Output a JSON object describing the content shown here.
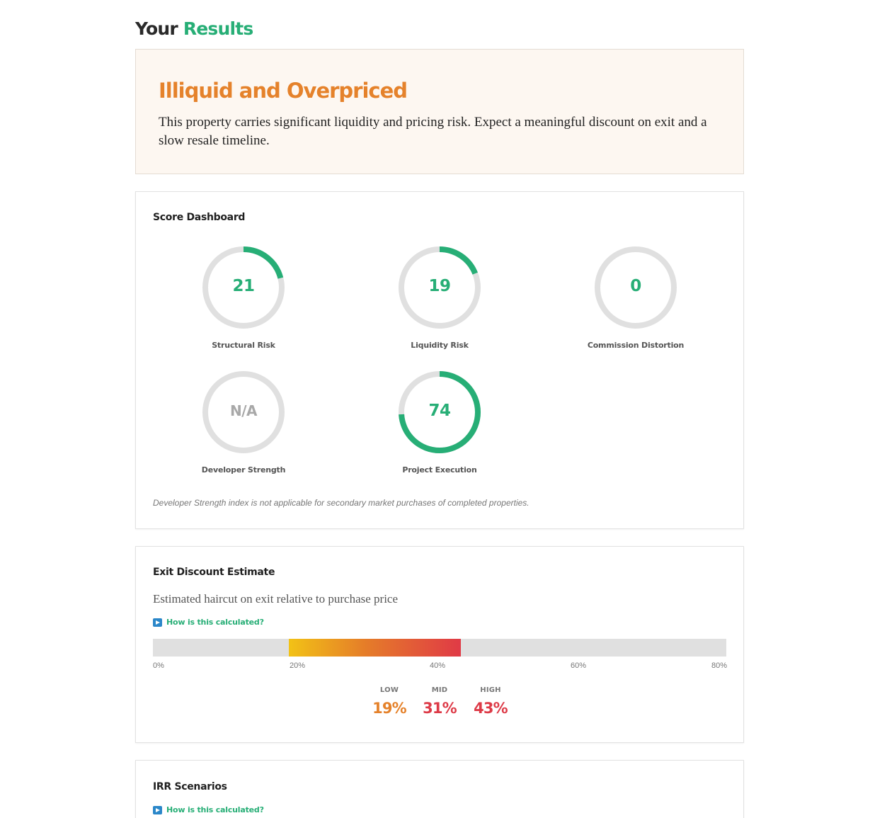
{
  "header": {
    "title_prefix": "Your",
    "title_accent": "Results"
  },
  "verdict": {
    "title": "Illiquid and Overpriced",
    "description": "This property carries significant liquidity and pricing risk. Expect a meaningful discount on exit and a slow resale timeline."
  },
  "score_dashboard": {
    "title": "Score Dashboard",
    "gauges": [
      {
        "label": "Structural Risk",
        "value": "21",
        "fraction": 0.21
      },
      {
        "label": "Liquidity Risk",
        "value": "19",
        "fraction": 0.19
      },
      {
        "label": "Commission Distortion",
        "value": "0",
        "fraction": 0
      },
      {
        "label": "Developer Strength",
        "value": "N/A",
        "fraction": 0
      },
      {
        "label": "Project Execution",
        "value": "74",
        "fraction": 0.74
      }
    ],
    "note": "Developer Strength index is not applicable for secondary market purchases of completed properties."
  },
  "exit_discount": {
    "title": "Exit Discount Estimate",
    "subtitle": "Estimated haircut on exit relative to purchase price",
    "how_link": "How is this calculated?",
    "range_low_pct": 19,
    "range_high_pct": 43,
    "scale_max_pct": 80,
    "ticks": [
      "0%",
      "20%",
      "40%",
      "60%",
      "80%"
    ],
    "stats": [
      {
        "label": "LOW",
        "value": "19%",
        "color": "#e5822b"
      },
      {
        "label": "MID",
        "value": "31%",
        "color": "#dd3a47"
      },
      {
        "label": "HIGH",
        "value": "43%",
        "color": "#dd3a47"
      }
    ]
  },
  "irr": {
    "title": "IRR Scenarios",
    "how_link": "How is this calculated?"
  },
  "colors": {
    "accent_green": "#27ae76",
    "verdict_orange": "#e5822b",
    "danger_red": "#dd3a47",
    "gauge_track": "#e0e0e0",
    "link_icon_blue": "#2b87c9"
  }
}
